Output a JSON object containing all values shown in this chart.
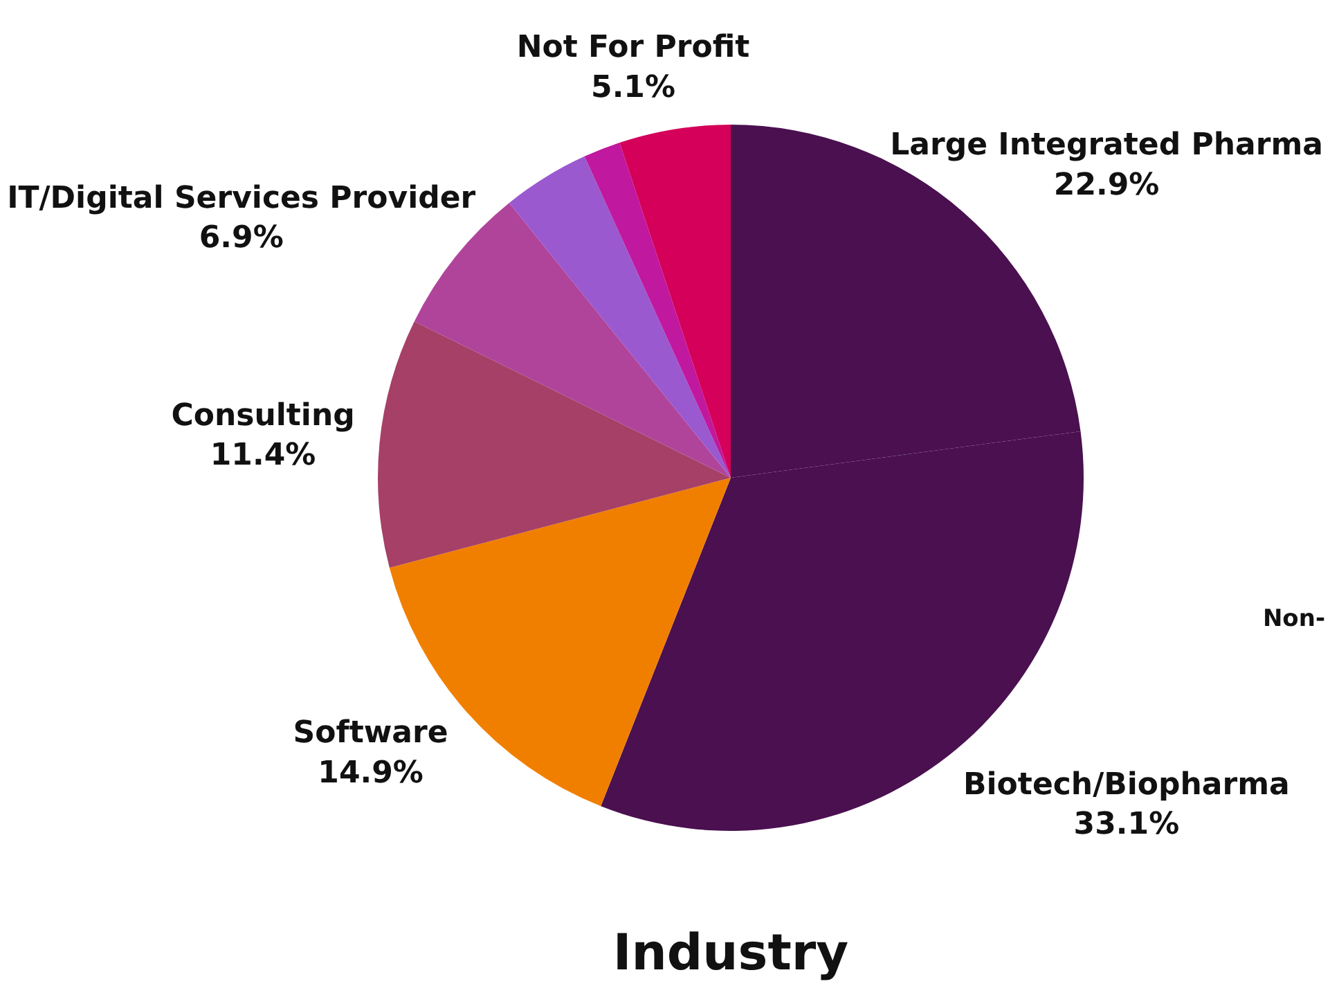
{
  "chart_data": {
    "type": "pie",
    "title": "Industry",
    "categories": [
      "Large Integrated Pharma",
      "Biotech/Biopharma",
      "Software",
      "Consulting",
      "IT/Digital Services Provider",
      null,
      null,
      "Not For Profit"
    ],
    "values": [
      22.9,
      33.1,
      14.9,
      11.4,
      6.9,
      4.0,
      1.7,
      5.1
    ],
    "colors": [
      "#4a1050",
      "#4a1050",
      "#f07f00",
      "#a64066",
      "#b0449a",
      "#9b59cf",
      "#c0189e",
      "#d4005a"
    ],
    "value_labels": [
      "22.9%",
      "33.1%",
      "14.9%",
      "11.4%",
      "6.9%",
      null,
      null,
      "5.1%"
    ],
    "annotations": [
      "Non-"
    ]
  }
}
